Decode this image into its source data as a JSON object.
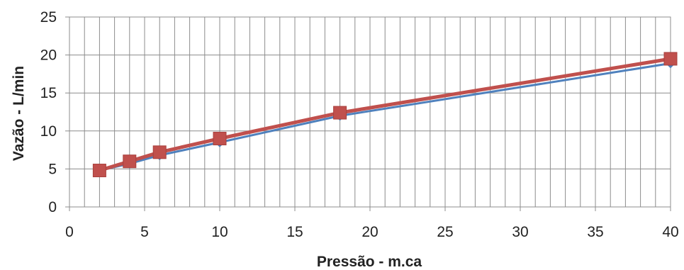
{
  "chart_data": {
    "type": "line",
    "title": "",
    "xlabel": "Pressão - m.ca",
    "ylabel": "Vazão - L/min",
    "xlim": [
      0,
      40
    ],
    "ylim": [
      0,
      25
    ],
    "xticks": [
      0,
      5,
      10,
      15,
      20,
      25,
      30,
      35,
      40
    ],
    "yticks": [
      0,
      5,
      10,
      15,
      20,
      25
    ],
    "x_minor_step": 1,
    "grid": true,
    "legend": "none",
    "series": [
      {
        "color": "#4f81bd",
        "marker": "diamond",
        "x": [
          2,
          4,
          6,
          10,
          18,
          40
        ],
        "y": [
          4.8,
          5.7,
          6.8,
          8.5,
          12.0,
          18.9
        ]
      },
      {
        "color": "#c0504d",
        "marker": "square",
        "x": [
          2,
          4,
          6,
          10,
          18,
          40
        ],
        "y": [
          4.8,
          6.0,
          7.2,
          9.0,
          12.4,
          19.5
        ]
      }
    ]
  }
}
